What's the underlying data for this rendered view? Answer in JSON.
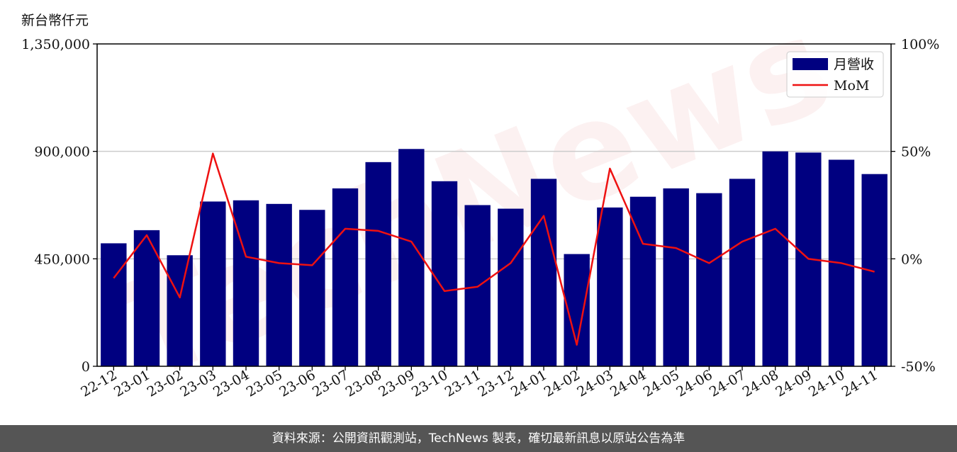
{
  "unit_label": "新台幣仟元",
  "footer": "資料來源：公開資訊觀測站，TechNews 製表，確切最新訊息以原站公告為準",
  "watermark": "TechNews",
  "colors": {
    "bar": "#000080",
    "line": "#ee1111",
    "grid": "#cccccc"
  },
  "chart_data": {
    "type": "bar",
    "categories": [
      "22-12",
      "23-01",
      "23-02",
      "23-03",
      "23-04",
      "23-05",
      "23-06",
      "23-07",
      "23-08",
      "23-09",
      "23-10",
      "23-11",
      "23-12",
      "24-01",
      "24-02",
      "24-03",
      "24-04",
      "24-05",
      "24-06",
      "24-07",
      "24-08",
      "24-09",
      "24-10",
      "24-11"
    ],
    "series": [
      {
        "name": "月營收",
        "type": "bar",
        "axis": "left",
        "values": [
          515000,
          570000,
          465000,
          690000,
          695000,
          680000,
          655000,
          745000,
          855000,
          910000,
          775000,
          675000,
          660000,
          785000,
          470000,
          665000,
          710000,
          745000,
          725000,
          785000,
          900000,
          895000,
          865000,
          805000
        ]
      },
      {
        "name": "MoM",
        "type": "line",
        "axis": "right",
        "values": [
          -9,
          11,
          -18,
          49,
          1,
          -2,
          -3,
          14,
          13,
          8,
          -15,
          -13,
          -2,
          20,
          -40,
          42,
          7,
          5,
          -2,
          8,
          14,
          0,
          -2,
          -6
        ]
      }
    ],
    "ylim": [
      0,
      1350000
    ],
    "yticks": [
      "0",
      "450,000",
      "900,000",
      "1,350,000"
    ],
    "y2lim": [
      -50,
      100
    ],
    "y2ticks": [
      "-50%",
      "0%",
      "50%",
      "100%"
    ],
    "grid": "horizontal",
    "legend_position": "top-right"
  }
}
